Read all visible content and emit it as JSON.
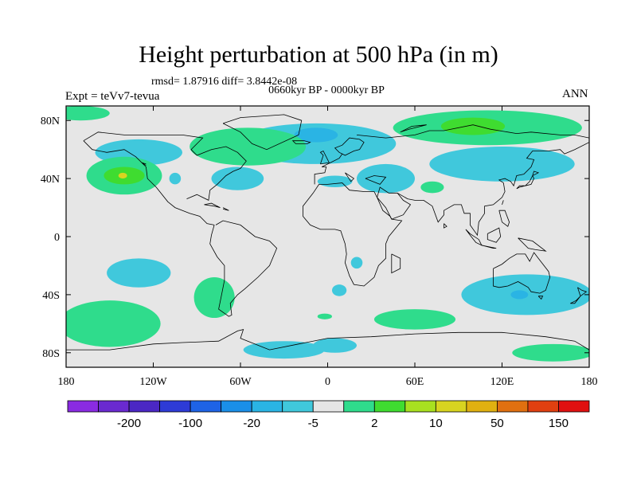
{
  "title": "Height perturbation at 500 hPa (in m)",
  "stats": "rmsd= 1.87916 diff= 3.8442e-08",
  "period": "0660kyr BP - 0000kyr BP",
  "experiment": "Expt = teVv7-tevua",
  "season": "ANN",
  "background_color": "#e6e6e6",
  "map": {
    "lon_range": [
      -180,
      180
    ],
    "lat_range": [
      -90,
      90
    ],
    "x_ticks": [
      {
        "value": -180,
        "label": "180"
      },
      {
        "value": -120,
        "label": "120W"
      },
      {
        "value": -60,
        "label": "60W"
      },
      {
        "value": 0,
        "label": "0"
      },
      {
        "value": 60,
        "label": "60E"
      },
      {
        "value": 120,
        "label": "120E"
      },
      {
        "value": 180,
        "label": "180"
      }
    ],
    "y_ticks": [
      {
        "value": 80,
        "label": "80N"
      },
      {
        "value": 40,
        "label": "40N"
      },
      {
        "value": 0,
        "label": "0"
      },
      {
        "value": -40,
        "label": "40S"
      },
      {
        "value": -80,
        "label": "80S"
      }
    ]
  },
  "colorbar": {
    "colors": [
      "#8a2be2",
      "#6a2ad0",
      "#4b27c4",
      "#2e3bd6",
      "#1e63e6",
      "#1a8fe8",
      "#2ab4e4",
      "#40c8dc",
      "#e6e6e6",
      "#2fdc8c",
      "#3fdc30",
      "#a8e020",
      "#d8d420",
      "#e0b010",
      "#e07010",
      "#e04010",
      "#e01010"
    ],
    "labels": [
      {
        "after_index": 1,
        "text": "-200"
      },
      {
        "after_index": 3,
        "text": "-100"
      },
      {
        "after_index": 5,
        "text": "-20"
      },
      {
        "after_index": 7,
        "text": "-5"
      },
      {
        "after_index": 9,
        "text": "2"
      },
      {
        "after_index": 11,
        "text": "10"
      },
      {
        "after_index": 13,
        "text": "50"
      },
      {
        "after_index": 15,
        "text": "150"
      }
    ]
  },
  "anomalies": [
    {
      "level": "-5",
      "color": "#40c8dc",
      "lon": -130,
      "lat": 58,
      "rlon": 30,
      "rlat": 9
    },
    {
      "level": "-5",
      "color": "#40c8dc",
      "lon": -105,
      "lat": 40,
      "rlon": 4,
      "rlat": 4
    },
    {
      "level": "-5",
      "color": "#40c8dc",
      "lon": -62,
      "lat": 40,
      "rlon": 18,
      "rlat": 8
    },
    {
      "level": "-5",
      "color": "#40c8dc",
      "lon": -8,
      "lat": 64,
      "rlon": 55,
      "rlat": 14
    },
    {
      "level": "-20",
      "color": "#2ab4e4",
      "lon": -8,
      "lat": 70,
      "rlon": 15,
      "rlat": 5
    },
    {
      "level": "-5",
      "color": "#40c8dc",
      "lon": 5,
      "lat": 38,
      "rlon": 12,
      "rlat": 4
    },
    {
      "level": "-5",
      "color": "#40c8dc",
      "lon": 40,
      "lat": 40,
      "rlon": 20,
      "rlat": 10
    },
    {
      "level": "-5",
      "color": "#40c8dc",
      "lon": 120,
      "lat": 50,
      "rlon": 50,
      "rlat": 12
    },
    {
      "level": "-5",
      "color": "#40c8dc",
      "lon": -130,
      "lat": -25,
      "rlon": 22,
      "rlat": 10
    },
    {
      "level": "-5",
      "color": "#40c8dc",
      "lon": 8,
      "lat": -37,
      "rlon": 5,
      "rlat": 4
    },
    {
      "level": "-5",
      "color": "#40c8dc",
      "lon": 20,
      "lat": -18,
      "rlon": 4,
      "rlat": 4
    },
    {
      "level": "-5",
      "color": "#40c8dc",
      "lon": 137,
      "lat": -40,
      "rlon": 45,
      "rlat": 14
    },
    {
      "level": "-20",
      "color": "#2ab4e4",
      "lon": 132,
      "lat": -40,
      "rlon": 6,
      "rlat": 3
    },
    {
      "level": "-5",
      "color": "#40c8dc",
      "lon": -30,
      "lat": -78,
      "rlon": 28,
      "rlat": 6
    },
    {
      "level": "-5",
      "color": "#40c8dc",
      "lon": 5,
      "lat": -75,
      "rlon": 15,
      "rlat": 5
    },
    {
      "level": "2",
      "color": "#2fdc8c",
      "lon": -140,
      "lat": 42,
      "rlon": 26,
      "rlat": 13
    },
    {
      "level": "10",
      "color": "#3fdc30",
      "lon": -140,
      "lat": 42,
      "rlon": 14,
      "rlat": 6
    },
    {
      "level": "10",
      "color": "#d8d420",
      "lon": -141,
      "lat": 42,
      "rlon": 3,
      "rlat": 2
    },
    {
      "level": "2",
      "color": "#2fdc8c",
      "lon": -55,
      "lat": 62,
      "rlon": 40,
      "rlat": 13
    },
    {
      "level": "2",
      "color": "#2fdc8c",
      "lon": -170,
      "lat": 85,
      "rlon": 20,
      "rlat": 5
    },
    {
      "level": "2",
      "color": "#2fdc8c",
      "lon": 110,
      "lat": 75,
      "rlon": 65,
      "rlat": 12
    },
    {
      "level": "10",
      "color": "#3fdc30",
      "lon": 100,
      "lat": 76,
      "rlon": 22,
      "rlat": 6
    },
    {
      "level": "2",
      "color": "#2fdc8c",
      "lon": 72,
      "lat": 34,
      "rlon": 8,
      "rlat": 4
    },
    {
      "level": "2",
      "color": "#2fdc8c",
      "lon": -150,
      "lat": -60,
      "rlon": 35,
      "rlat": 16
    },
    {
      "level": "2",
      "color": "#2fdc8c",
      "lon": -78,
      "lat": -42,
      "rlon": 14,
      "rlat": 14
    },
    {
      "level": "2",
      "color": "#2fdc8c",
      "lon": 60,
      "lat": -57,
      "rlon": 28,
      "rlat": 7
    },
    {
      "level": "2",
      "color": "#2fdc8c",
      "lon": -2,
      "lat": -55,
      "rlon": 5,
      "rlat": 2
    },
    {
      "level": "2",
      "color": "#2fdc8c",
      "lon": 155,
      "lat": -80,
      "rlon": 28,
      "rlat": 6
    }
  ],
  "coastlines": [
    [
      [
        -168,
        66
      ],
      [
        -162,
        60
      ],
      [
        -152,
        58
      ],
      [
        -140,
        60
      ],
      [
        -132,
        55
      ],
      [
        -125,
        48
      ],
      [
        -124,
        40
      ],
      [
        -118,
        34
      ],
      [
        -110,
        24
      ],
      [
        -105,
        20
      ],
      [
        -95,
        16
      ],
      [
        -88,
        14
      ],
      [
        -83,
        9
      ],
      [
        -78,
        8
      ]
    ],
    [
      [
        -78,
        8
      ],
      [
        -80,
        1
      ],
      [
        -81,
        -5
      ],
      [
        -76,
        -14
      ],
      [
        -71,
        -20
      ],
      [
        -71,
        -30
      ],
      [
        -73,
        -40
      ],
      [
        -75,
        -50
      ],
      [
        -68,
        -55
      ],
      [
        -66,
        -54
      ],
      [
        -67,
        -46
      ],
      [
        -62,
        -40
      ],
      [
        -57,
        -36
      ],
      [
        -48,
        -28
      ],
      [
        -40,
        -20
      ],
      [
        -35,
        -8
      ],
      [
        -40,
        -3
      ],
      [
        -50,
        0
      ],
      [
        -60,
        8
      ],
      [
        -72,
        11
      ],
      [
        -77,
        8
      ]
    ],
    [
      [
        -97,
        26
      ],
      [
        -90,
        29
      ],
      [
        -82,
        25
      ],
      [
        -81,
        32
      ],
      [
        -76,
        36
      ],
      [
        -70,
        42
      ],
      [
        -65,
        45
      ],
      [
        -60,
        47
      ],
      [
        -56,
        52
      ],
      [
        -62,
        58
      ],
      [
        -70,
        62
      ],
      [
        -80,
        60
      ],
      [
        -90,
        56
      ],
      [
        -94,
        60
      ],
      [
        -86,
        68
      ],
      [
        -100,
        70
      ],
      [
        -120,
        70
      ],
      [
        -140,
        70
      ],
      [
        -158,
        72
      ],
      [
        -168,
        66
      ]
    ],
    [
      [
        -72,
        78
      ],
      [
        -60,
        82
      ],
      [
        -30,
        84
      ],
      [
        -18,
        80
      ],
      [
        -20,
        70
      ],
      [
        -42,
        60
      ],
      [
        -52,
        64
      ],
      [
        -60,
        72
      ],
      [
        -72,
        78
      ]
    ],
    [
      [
        -16,
        66
      ],
      [
        -12,
        65
      ],
      [
        -14,
        64
      ],
      [
        -22,
        64
      ],
      [
        -24,
        66
      ],
      [
        -16,
        66
      ]
    ],
    [
      [
        -9,
        36
      ],
      [
        -9,
        43
      ],
      [
        -2,
        44
      ],
      [
        -1,
        48
      ],
      [
        -4,
        48
      ],
      [
        2,
        51
      ],
      [
        8,
        54
      ],
      [
        10,
        57
      ],
      [
        12,
        56
      ],
      [
        18,
        59
      ],
      [
        22,
        60
      ],
      [
        25,
        65
      ],
      [
        22,
        67
      ],
      [
        15,
        68
      ],
      [
        10,
        63
      ],
      [
        5,
        61
      ],
      [
        8,
        58
      ],
      [
        12,
        56
      ]
    ],
    [
      [
        -5,
        50
      ],
      [
        -3,
        56
      ],
      [
        -5,
        58
      ],
      [
        -3,
        59
      ],
      [
        0,
        53
      ],
      [
        1,
        51
      ],
      [
        -5,
        50
      ]
    ],
    [
      [
        -6,
        36
      ],
      [
        -10,
        30
      ],
      [
        -17,
        21
      ],
      [
        -17,
        14
      ],
      [
        -12,
        8
      ],
      [
        -5,
        5
      ],
      [
        5,
        5
      ],
      [
        9,
        4
      ],
      [
        12,
        -5
      ],
      [
        13,
        -12
      ],
      [
        12,
        -18
      ],
      [
        15,
        -27
      ],
      [
        18,
        -33
      ],
      [
        25,
        -34
      ],
      [
        32,
        -28
      ],
      [
        35,
        -20
      ],
      [
        40,
        -15
      ],
      [
        40,
        -5
      ],
      [
        42,
        0
      ],
      [
        51,
        11
      ],
      [
        44,
        12
      ],
      [
        43,
        14
      ],
      [
        38,
        18
      ],
      [
        34,
        27
      ],
      [
        32,
        31
      ],
      [
        25,
        31
      ],
      [
        15,
        32
      ],
      [
        10,
        37
      ],
      [
        0,
        36
      ],
      [
        -6,
        36
      ]
    ],
    [
      [
        44,
        -12
      ],
      [
        50,
        -15
      ],
      [
        50,
        -22
      ],
      [
        44,
        -25
      ],
      [
        44,
        -12
      ]
    ],
    [
      [
        34,
        27
      ],
      [
        40,
        20
      ],
      [
        44,
        12
      ],
      [
        52,
        15
      ],
      [
        57,
        22
      ],
      [
        52,
        25
      ],
      [
        48,
        30
      ],
      [
        42,
        30
      ],
      [
        36,
        34
      ],
      [
        34,
        27
      ]
    ],
    [
      [
        26,
        40
      ],
      [
        36,
        36
      ],
      [
        40,
        41
      ],
      [
        32,
        42
      ],
      [
        26,
        40
      ]
    ],
    [
      [
        12,
        44
      ],
      [
        18,
        40
      ],
      [
        16,
        38
      ],
      [
        12,
        44
      ]
    ],
    [
      [
        48,
        30
      ],
      [
        55,
        26
      ],
      [
        60,
        25
      ],
      [
        66,
        25
      ],
      [
        72,
        21
      ],
      [
        76,
        10
      ],
      [
        80,
        15
      ],
      [
        80,
        18
      ],
      [
        87,
        22
      ],
      [
        92,
        22
      ],
      [
        94,
        16
      ],
      [
        98,
        16
      ],
      [
        98,
        8
      ],
      [
        103,
        1
      ],
      [
        104,
        10
      ],
      [
        108,
        16
      ],
      [
        108,
        21
      ],
      [
        114,
        22
      ],
      [
        120,
        27
      ],
      [
        122,
        31
      ],
      [
        121,
        37
      ],
      [
        118,
        39
      ],
      [
        122,
        40
      ],
      [
        126,
        38
      ],
      [
        128,
        35
      ],
      [
        130,
        42
      ],
      [
        135,
        43
      ],
      [
        140,
        48
      ],
      [
        142,
        53
      ],
      [
        137,
        54
      ],
      [
        141,
        59
      ],
      [
        152,
        59
      ],
      [
        160,
        60
      ],
      [
        163,
        57
      ],
      [
        170,
        60
      ],
      [
        180,
        65
      ]
    ],
    [
      [
        130,
        33
      ],
      [
        132,
        35
      ],
      [
        136,
        35
      ],
      [
        140,
        36
      ],
      [
        142,
        40
      ],
      [
        141,
        42
      ],
      [
        145,
        44
      ],
      [
        142,
        45
      ],
      [
        141,
        42
      ],
      [
        139,
        38
      ],
      [
        136,
        35
      ],
      [
        132,
        34
      ],
      [
        130,
        33
      ]
    ],
    [
      [
        95,
        5
      ],
      [
        98,
        2
      ],
      [
        104,
        -2
      ],
      [
        106,
        -6
      ],
      [
        102,
        -4
      ],
      [
        98,
        1
      ],
      [
        95,
        5
      ]
    ],
    [
      [
        106,
        -6
      ],
      [
        114,
        -8
      ],
      [
        116,
        -8
      ],
      [
        106,
        -6
      ]
    ],
    [
      [
        110,
        2
      ],
      [
        118,
        6
      ],
      [
        119,
        0
      ],
      [
        116,
        -4
      ],
      [
        110,
        -2
      ],
      [
        110,
        2
      ]
    ],
    [
      [
        131,
        -1
      ],
      [
        141,
        -3
      ],
      [
        150,
        -10
      ],
      [
        143,
        -9
      ],
      [
        138,
        -8
      ],
      [
        131,
        -1
      ]
    ],
    [
      [
        114,
        -22
      ],
      [
        114,
        -34
      ],
      [
        118,
        -35
      ],
      [
        124,
        -34
      ],
      [
        131,
        -31
      ],
      [
        138,
        -35
      ],
      [
        140,
        -38
      ],
      [
        146,
        -39
      ],
      [
        150,
        -37
      ],
      [
        153,
        -28
      ],
      [
        152,
        -24
      ],
      [
        145,
        -15
      ],
      [
        142,
        -11
      ],
      [
        139,
        -17
      ],
      [
        136,
        -12
      ],
      [
        130,
        -12
      ],
      [
        125,
        -15
      ],
      [
        120,
        -19
      ],
      [
        114,
        -22
      ]
    ],
    [
      [
        145,
        -41
      ],
      [
        148,
        -41
      ],
      [
        147,
        -43
      ],
      [
        145,
        -41
      ]
    ],
    [
      [
        172,
        -35
      ],
      [
        175,
        -37
      ],
      [
        178,
        -38
      ],
      [
        174,
        -41
      ],
      [
        171,
        -44
      ],
      [
        167,
        -46
      ],
      [
        170,
        -46
      ],
      [
        174,
        -41
      ],
      [
        172,
        -35
      ]
    ],
    [
      [
        20,
        70
      ],
      [
        40,
        68
      ],
      [
        60,
        70
      ],
      [
        70,
        73
      ],
      [
        80,
        73
      ],
      [
        100,
        77
      ],
      [
        112,
        74
      ],
      [
        130,
        71
      ],
      [
        140,
        72
      ],
      [
        160,
        70
      ],
      [
        170,
        70
      ],
      [
        180,
        68
      ]
    ],
    [
      [
        50,
        72
      ],
      [
        58,
        76
      ],
      [
        68,
        77
      ],
      [
        56,
        74
      ],
      [
        50,
        72
      ]
    ],
    [
      [
        -180,
        -78
      ],
      [
        -150,
        -78
      ],
      [
        -120,
        -74
      ],
      [
        -100,
        -73
      ],
      [
        -75,
        -72
      ],
      [
        -62,
        -65
      ],
      [
        -58,
        -64
      ],
      [
        -60,
        -70
      ],
      [
        -40,
        -78
      ],
      [
        -20,
        -74
      ],
      [
        0,
        -70
      ],
      [
        30,
        -69
      ],
      [
        60,
        -67
      ],
      [
        90,
        -66
      ],
      [
        120,
        -66
      ],
      [
        150,
        -69
      ],
      [
        170,
        -72
      ],
      [
        180,
        -78
      ]
    ],
    [
      [
        -125,
        50
      ],
      [
        -128,
        51
      ],
      [
        -125,
        49
      ]
    ],
    [
      [
        -85,
        22
      ],
      [
        -78,
        21
      ],
      [
        -74,
        20
      ],
      [
        -80,
        23
      ],
      [
        -85,
        22
      ]
    ],
    [
      [
        -72,
        19
      ],
      [
        -68,
        18
      ],
      [
        -72,
        20
      ]
    ],
    [
      [
        118,
        18
      ],
      [
        122,
        18
      ],
      [
        125,
        10
      ],
      [
        124,
        7
      ],
      [
        120,
        10
      ],
      [
        118,
        18
      ]
    ],
    [
      [
        120,
        22
      ],
      [
        121,
        25
      ],
      [
        120,
        22
      ]
    ],
    [
      [
        80,
        9
      ],
      [
        82,
        7
      ],
      [
        80,
        6
      ],
      [
        80,
        9
      ]
    ]
  ]
}
